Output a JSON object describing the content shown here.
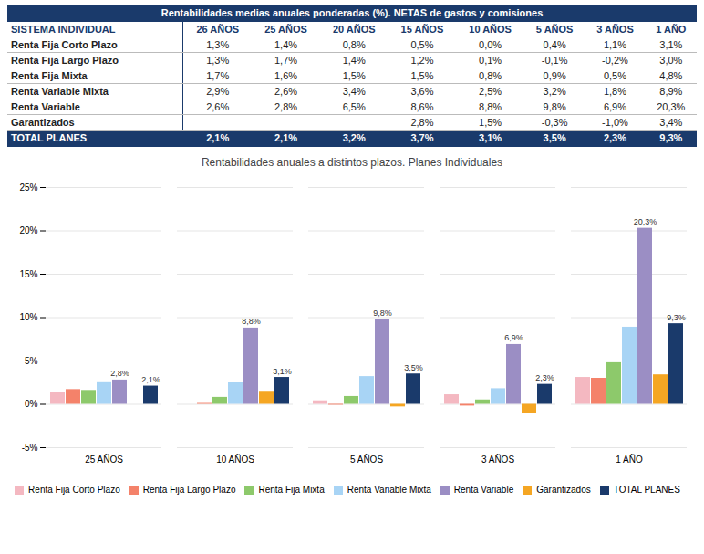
{
  "chart_data": [
    {
      "type": "table",
      "title": "Rentabilidades medias anuales ponderadas (%). NETAS de gastos y comisiones",
      "ylabel": "SISTEMA INDIVIDUAL",
      "categories": [
        "Renta Fija Corto Plazo",
        "Renta Fija Largo Plazo",
        "Renta Fija Mixta",
        "Renta Variable Mixta",
        "Renta Variable",
        "Garantizados",
        "TOTAL PLANES"
      ],
      "series": [
        {
          "name": "26 AÑOS",
          "values": [
            1.3,
            1.3,
            1.7,
            2.9,
            2.6,
            null,
            2.1
          ],
          "value_labels": [
            "1,3%",
            "1,3%",
            "1,7%",
            "2,9%",
            "2,6%",
            null,
            "2,1%"
          ]
        },
        {
          "name": "25 AÑOS",
          "values": [
            1.4,
            1.7,
            1.6,
            2.6,
            2.8,
            null,
            2.1
          ],
          "value_labels": [
            "1,4%",
            "1,7%",
            "1,6%",
            "2,6%",
            "2,8%",
            null,
            "2,1%"
          ]
        },
        {
          "name": "20 AÑOS",
          "values": [
            0.8,
            1.4,
            1.5,
            3.4,
            6.5,
            null,
            3.2
          ],
          "value_labels": [
            "0,8%",
            "1,4%",
            "1,5%",
            "3,4%",
            "6,5%",
            null,
            "3,2%"
          ]
        },
        {
          "name": "15 AÑOS",
          "values": [
            0.5,
            1.2,
            1.5,
            3.6,
            8.6,
            2.8,
            3.7
          ],
          "value_labels": [
            "0,5%",
            "1,2%",
            "1,5%",
            "3,6%",
            "8,6%",
            "2,8%",
            "3,7%"
          ]
        },
        {
          "name": "10 AÑOS",
          "values": [
            0.0,
            0.1,
            0.8,
            2.5,
            8.8,
            1.5,
            3.1
          ],
          "value_labels": [
            "0,0%",
            "0,1%",
            "0,8%",
            "2,5%",
            "8,8%",
            "1,5%",
            "3,1%"
          ]
        },
        {
          "name": "5 AÑOS",
          "values": [
            0.4,
            -0.1,
            0.9,
            3.2,
            9.8,
            -0.3,
            3.5
          ],
          "value_labels": [
            "0,4%",
            "-0,1%",
            "0,9%",
            "3,2%",
            "9,8%",
            "-0,3%",
            "3,5%"
          ]
        },
        {
          "name": "3 AÑOS",
          "values": [
            1.1,
            -0.2,
            0.5,
            1.8,
            6.9,
            -1.0,
            2.3
          ],
          "value_labels": [
            "1,1%",
            "-0,2%",
            "0,5%",
            "1,8%",
            "6,9%",
            "-1,0%",
            "2,3%"
          ]
        },
        {
          "name": "1 AÑO",
          "values": [
            3.1,
            3.0,
            4.8,
            8.9,
            20.3,
            3.4,
            9.3
          ],
          "value_labels": [
            "3,1%",
            "3,0%",
            "4,8%",
            "8,9%",
            "20,3%",
            "3,4%",
            "9,3%"
          ]
        }
      ]
    },
    {
      "type": "bar",
      "title": "Rentabilidades anuales a distintos plazos. Planes Individuales",
      "categories": [
        "25 AÑOS",
        "10 AÑOS",
        "5 AÑOS",
        "3 AÑOS",
        "1 AÑO"
      ],
      "series": [
        {
          "name": "Renta Fija Corto Plazo",
          "color": "#f4b8c1",
          "values": [
            1.4,
            0.0,
            0.4,
            1.1,
            3.1
          ]
        },
        {
          "name": "Renta Fija Largo Plazo",
          "color": "#f4826a",
          "values": [
            1.7,
            0.1,
            -0.1,
            -0.2,
            3.0
          ]
        },
        {
          "name": "Renta Fija Mixta",
          "color": "#8dc96b",
          "values": [
            1.6,
            0.8,
            0.9,
            0.5,
            4.8
          ]
        },
        {
          "name": "Renta Variable Mixta",
          "color": "#a8d4f5",
          "values": [
            2.6,
            2.5,
            3.2,
            1.8,
            8.9
          ]
        },
        {
          "name": "Renta Variable",
          "color": "#9b8ec4",
          "values": [
            2.8,
            8.8,
            9.8,
            6.9,
            20.3
          ],
          "value_labels": [
            "2,8%",
            "8,8%",
            "9,8%",
            "6,9%",
            "20,3%"
          ]
        },
        {
          "name": "Garantizados",
          "color": "#f5a623",
          "values": [
            0.0,
            1.5,
            -0.3,
            -1.0,
            3.4
          ]
        },
        {
          "name": "TOTAL PLANES",
          "color": "#1a3a6b",
          "values": [
            2.1,
            3.1,
            3.5,
            2.3,
            9.3
          ],
          "value_labels": [
            "2,1%",
            "3,1%",
            "3,5%",
            "2,3%",
            "9,3%"
          ]
        }
      ],
      "ylim": [
        -5,
        25
      ],
      "yticks": [
        {
          "value": -5,
          "label": "-5%"
        },
        {
          "value": 0,
          "label": "0%"
        },
        {
          "value": 5,
          "label": "5%"
        },
        {
          "value": 10,
          "label": "10%"
        },
        {
          "value": 15,
          "label": "15%"
        },
        {
          "value": 20,
          "label": "20%"
        },
        {
          "value": 25,
          "label": "25%"
        }
      ],
      "grid": true,
      "legend": "bottom"
    }
  ]
}
